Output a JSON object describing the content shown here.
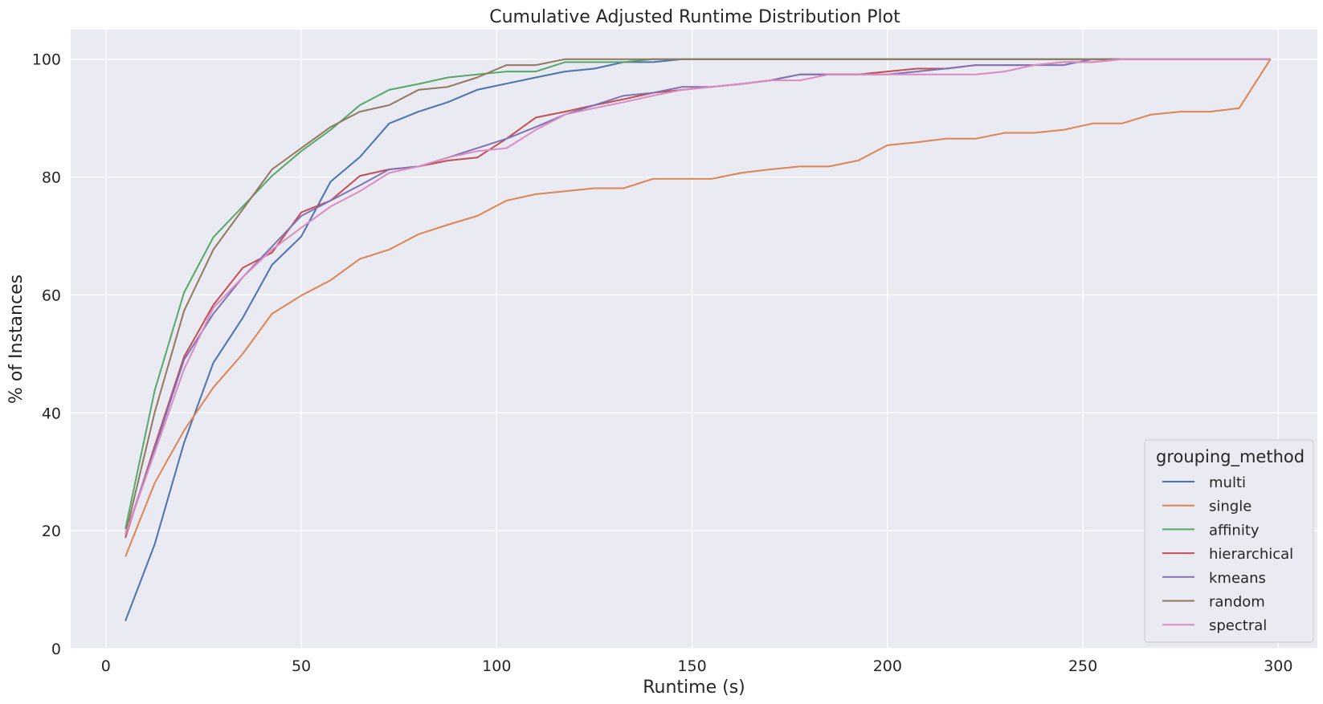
{
  "chart_data": {
    "type": "line",
    "title": "Cumulative Adjusted Runtime Distribution Plot",
    "xlabel": "Runtime (s)",
    "ylabel": "% of Instances",
    "xlim": [
      -9,
      310
    ],
    "ylim": [
      0,
      105
    ],
    "xticks": [
      0,
      50,
      100,
      150,
      200,
      250,
      300
    ],
    "yticks": [
      0,
      20,
      40,
      60,
      80,
      100
    ],
    "grid": true,
    "legend_title": "grouping_method",
    "legend_position": "lower-right",
    "series": [
      {
        "name": "multi",
        "color": "#4c72b0",
        "points": [
          [
            5,
            4.7
          ],
          [
            12.5,
            17.7
          ],
          [
            20,
            34.9
          ],
          [
            27.5,
            48.5
          ],
          [
            35,
            56.1
          ],
          [
            42.5,
            65.1
          ],
          [
            50,
            69.9
          ],
          [
            57.5,
            79.2
          ],
          [
            65,
            83.4
          ],
          [
            72.5,
            89.1
          ],
          [
            80,
            91.1
          ],
          [
            87.5,
            92.7
          ],
          [
            95,
            94.8
          ],
          [
            110,
            96.9
          ],
          [
            117.5,
            97.9
          ],
          [
            125,
            98.4
          ],
          [
            132.5,
            99.5
          ],
          [
            140,
            99.5
          ],
          [
            147.5,
            100
          ],
          [
            298,
            100
          ]
        ]
      },
      {
        "name": "single",
        "color": "#dd8452",
        "points": [
          [
            5,
            15.6
          ],
          [
            12.5,
            28.1
          ],
          [
            20,
            37.0
          ],
          [
            27.5,
            44.3
          ],
          [
            35,
            50.0
          ],
          [
            42.5,
            56.8
          ],
          [
            50,
            59.9
          ],
          [
            57.5,
            62.5
          ],
          [
            65,
            66.1
          ],
          [
            72.5,
            67.7
          ],
          [
            80,
            70.3
          ],
          [
            87.5,
            71.9
          ],
          [
            95,
            73.4
          ],
          [
            102.5,
            76.0
          ],
          [
            110,
            77.1
          ],
          [
            117.5,
            77.6
          ],
          [
            125,
            78.1
          ],
          [
            132.5,
            78.1
          ],
          [
            140,
            79.7
          ],
          [
            147.5,
            79.7
          ],
          [
            155,
            79.7
          ],
          [
            162.5,
            80.7
          ],
          [
            170,
            81.3
          ],
          [
            177.5,
            81.8
          ],
          [
            185,
            81.8
          ],
          [
            192.5,
            82.8
          ],
          [
            200,
            85.4
          ],
          [
            207.5,
            85.9
          ],
          [
            215,
            86.5
          ],
          [
            222.5,
            86.5
          ],
          [
            230,
            87.5
          ],
          [
            237.5,
            87.5
          ],
          [
            245,
            88.0
          ],
          [
            252.5,
            89.1
          ],
          [
            260,
            89.1
          ],
          [
            267.5,
            90.6
          ],
          [
            275,
            91.1
          ],
          [
            282.5,
            91.1
          ],
          [
            290,
            91.7
          ],
          [
            298,
            100
          ]
        ]
      },
      {
        "name": "affinity",
        "color": "#55a868",
        "points": [
          [
            5,
            20.3
          ],
          [
            12.5,
            43.8
          ],
          [
            20,
            60.4
          ],
          [
            27.5,
            69.8
          ],
          [
            35,
            75.0
          ],
          [
            42.5,
            80.2
          ],
          [
            50,
            84.4
          ],
          [
            57.5,
            88.0
          ],
          [
            65,
            92.2
          ],
          [
            72.5,
            94.8
          ],
          [
            80,
            95.8
          ],
          [
            87.5,
            96.9
          ],
          [
            95,
            97.4
          ],
          [
            102.5,
            97.9
          ],
          [
            110,
            97.9
          ],
          [
            117.5,
            99.5
          ],
          [
            125,
            99.5
          ],
          [
            132.5,
            99.5
          ],
          [
            140,
            100
          ],
          [
            298,
            100
          ]
        ]
      },
      {
        "name": "hierarchical",
        "color": "#c44e52",
        "points": [
          [
            5,
            18.8
          ],
          [
            12.5,
            34.4
          ],
          [
            20,
            49.5
          ],
          [
            27.5,
            58.3
          ],
          [
            35,
            64.6
          ],
          [
            42.5,
            67.2
          ],
          [
            50,
            74.0
          ],
          [
            57.5,
            76.0
          ],
          [
            65,
            80.2
          ],
          [
            72.5,
            81.3
          ],
          [
            80,
            81.8
          ],
          [
            87.5,
            82.8
          ],
          [
            95,
            83.3
          ],
          [
            102.5,
            86.5
          ],
          [
            110,
            90.1
          ],
          [
            117.5,
            91.1
          ],
          [
            125,
            92.2
          ],
          [
            132.5,
            93.2
          ],
          [
            140,
            94.3
          ],
          [
            147.5,
            94.8
          ],
          [
            155,
            95.3
          ],
          [
            162.5,
            95.8
          ],
          [
            170,
            96.4
          ],
          [
            177.5,
            97.4
          ],
          [
            185,
            97.4
          ],
          [
            192.5,
            97.4
          ],
          [
            200,
            97.9
          ],
          [
            207.5,
            98.4
          ],
          [
            215,
            98.4
          ],
          [
            222.5,
            99.0
          ],
          [
            230,
            99.0
          ],
          [
            237.5,
            99.0
          ],
          [
            245,
            99.5
          ],
          [
            252.5,
            99.5
          ],
          [
            260,
            100
          ],
          [
            298,
            100
          ]
        ]
      },
      {
        "name": "kmeans",
        "color": "#8172b3",
        "points": [
          [
            5,
            19.3
          ],
          [
            12.5,
            33.9
          ],
          [
            20,
            49.0
          ],
          [
            27.5,
            56.8
          ],
          [
            35,
            63.0
          ],
          [
            42.5,
            68.2
          ],
          [
            50,
            73.4
          ],
          [
            57.5,
            76.0
          ],
          [
            65,
            78.6
          ],
          [
            72.5,
            81.3
          ],
          [
            80,
            81.8
          ],
          [
            87.5,
            83.3
          ],
          [
            95,
            84.9
          ],
          [
            102.5,
            86.5
          ],
          [
            110,
            88.5
          ],
          [
            117.5,
            90.6
          ],
          [
            125,
            92.2
          ],
          [
            132.5,
            93.8
          ],
          [
            140,
            94.3
          ],
          [
            147.5,
            95.3
          ],
          [
            155,
            95.3
          ],
          [
            162.5,
            95.8
          ],
          [
            170,
            96.4
          ],
          [
            177.5,
            97.4
          ],
          [
            185,
            97.4
          ],
          [
            192.5,
            97.4
          ],
          [
            200,
            97.4
          ],
          [
            207.5,
            97.9
          ],
          [
            215,
            98.4
          ],
          [
            222.5,
            99.0
          ],
          [
            230,
            99.0
          ],
          [
            237.5,
            99.0
          ],
          [
            245,
            99.0
          ],
          [
            252.5,
            100
          ],
          [
            298,
            100
          ]
        ]
      },
      {
        "name": "random",
        "color": "#937860",
        "points": [
          [
            5,
            19.3
          ],
          [
            12.5,
            40.1
          ],
          [
            20,
            57.3
          ],
          [
            27.5,
            67.7
          ],
          [
            35,
            74.5
          ],
          [
            42.5,
            81.3
          ],
          [
            50,
            84.9
          ],
          [
            57.5,
            88.5
          ],
          [
            65,
            91.1
          ],
          [
            72.5,
            92.2
          ],
          [
            80,
            94.8
          ],
          [
            87.5,
            95.3
          ],
          [
            95,
            96.9
          ],
          [
            102.5,
            99.0
          ],
          [
            110,
            99.0
          ],
          [
            117.5,
            100
          ],
          [
            298,
            100
          ]
        ]
      },
      {
        "name": "spectral",
        "color": "#da8bc3",
        "points": [
          [
            5,
            19.3
          ],
          [
            12.5,
            33.3
          ],
          [
            20,
            47.4
          ],
          [
            27.5,
            57.8
          ],
          [
            35,
            63.0
          ],
          [
            42.5,
            67.7
          ],
          [
            50,
            71.4
          ],
          [
            57.5,
            75.0
          ],
          [
            65,
            77.6
          ],
          [
            72.5,
            80.7
          ],
          [
            80,
            81.8
          ],
          [
            87.5,
            83.3
          ],
          [
            95,
            84.4
          ],
          [
            102.5,
            84.9
          ],
          [
            110,
            88.0
          ],
          [
            117.5,
            90.6
          ],
          [
            125,
            91.7
          ],
          [
            132.5,
            92.7
          ],
          [
            140,
            93.8
          ],
          [
            147.5,
            94.8
          ],
          [
            155,
            95.3
          ],
          [
            162.5,
            95.8
          ],
          [
            170,
            96.4
          ],
          [
            177.5,
            96.4
          ],
          [
            185,
            97.4
          ],
          [
            192.5,
            97.4
          ],
          [
            200,
            97.4
          ],
          [
            207.5,
            97.4
          ],
          [
            215,
            97.4
          ],
          [
            222.5,
            97.4
          ],
          [
            230,
            97.9
          ],
          [
            237.5,
            99.0
          ],
          [
            245,
            99.5
          ],
          [
            252.5,
            99.5
          ],
          [
            260,
            100
          ],
          [
            298,
            100
          ]
        ]
      }
    ]
  }
}
